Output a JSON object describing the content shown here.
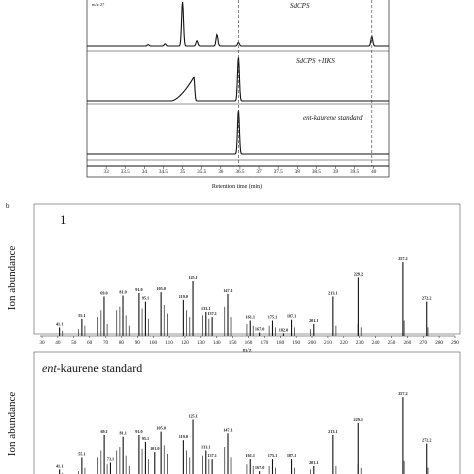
{
  "chart_data": [
    {
      "type": "line",
      "panel_label": "",
      "tracks": [
        {
          "name": "SdCPS"
        },
        {
          "name": "SdCPS +IIKS"
        },
        {
          "name": "ent-kaurene standard"
        },
        {
          "name": ""
        }
      ],
      "top_corner_text": "m/z 27",
      "xlabel": "Retention time (min)",
      "xlim": [
        32.5,
        40.4
      ],
      "xticks": [
        33,
        33.5,
        34,
        34.5,
        35,
        35.5,
        36,
        36.5,
        37,
        37.5,
        38,
        38.5,
        39,
        39.5,
        40
      ],
      "dashed_markers": [
        36.46,
        39.95
      ],
      "peaks": {
        "SdCPS": [
          [
            34.1,
            0.03
          ],
          [
            34.55,
            0.05
          ],
          [
            35.0,
            1.0
          ],
          [
            35.38,
            0.12
          ],
          [
            35.9,
            0.26
          ],
          [
            36.46,
            0.08
          ],
          [
            39.95,
            0.22
          ]
        ],
        "SdCPS +IIKS": [
          [
            35.3,
            0.55
          ],
          [
            36.46,
            1.0
          ]
        ],
        "ent-kaurene standard": [
          [
            36.46,
            1.0
          ]
        ],
        "": []
      }
    },
    {
      "type": "bar",
      "panel_label": "b",
      "title": "1",
      "xlabel": "m/z",
      "ylabel": "Ion abundance",
      "xlim": [
        30,
        290
      ],
      "ylim": [
        0,
        100
      ],
      "xticks": [
        30,
        40,
        50,
        60,
        70,
        80,
        90,
        100,
        110,
        120,
        130,
        140,
        150,
        160,
        170,
        180,
        190,
        200,
        210,
        220,
        230,
        240,
        250,
        260,
        270,
        280,
        290
      ],
      "x": [
        41.1,
        43,
        53,
        55.1,
        57,
        65,
        67,
        69.0,
        71,
        77,
        79,
        81.0,
        83,
        85,
        91.0,
        93,
        95.1,
        97,
        105.0,
        107,
        109,
        119.0,
        121,
        123,
        125.1,
        131,
        133.1,
        135,
        137.1,
        145,
        147.1,
        149,
        159,
        161.1,
        163,
        167.0,
        173,
        175.1,
        177,
        182.0,
        187.1,
        189,
        199,
        201.1,
        213.1,
        215,
        229,
        229.2,
        231,
        257.2,
        258,
        272.2,
        273
      ],
      "values": [
        10,
        6,
        8,
        20,
        12,
        22,
        30,
        46,
        14,
        30,
        34,
        47,
        24,
        12,
        50,
        32,
        40,
        20,
        51,
        36,
        26,
        42,
        30,
        22,
        64,
        24,
        28,
        20,
        22,
        34,
        49,
        22,
        14,
        18,
        12,
        4,
        12,
        18,
        10,
        3,
        19,
        10,
        8,
        14,
        46,
        12,
        14,
        68,
        10,
        86,
        18,
        40,
        10
      ],
      "annotations": [
        {
          "x": 41.1,
          "label": "41.1"
        },
        {
          "x": 55.1,
          "label": "55.1"
        },
        {
          "x": 69.0,
          "label": "69.0"
        },
        {
          "x": 81.0,
          "label": "81.0"
        },
        {
          "x": 91.0,
          "label": "91.0"
        },
        {
          "x": 95.1,
          "label": "95.1"
        },
        {
          "x": 105.0,
          "label": "105.0"
        },
        {
          "x": 119.0,
          "label": "119.0"
        },
        {
          "x": 125.1,
          "label": "125.1"
        },
        {
          "x": 133.1,
          "label": "133.1"
        },
        {
          "x": 137.1,
          "label": "137.1"
        },
        {
          "x": 147.1,
          "label": "147.1"
        },
        {
          "x": 161.1,
          "label": "161.1"
        },
        {
          "x": 167.0,
          "label": "167.0"
        },
        {
          "x": 175.1,
          "label": "175.1"
        },
        {
          "x": 182.0,
          "label": "182.0"
        },
        {
          "x": 187.1,
          "label": "187.1"
        },
        {
          "x": 201.1,
          "label": "201.1"
        },
        {
          "x": 213.1,
          "label": "213.1"
        },
        {
          "x": 229.2,
          "label": "229.2"
        },
        {
          "x": 257.2,
          "label": "257.2"
        },
        {
          "x": 272.2,
          "label": "272.2"
        }
      ]
    },
    {
      "type": "bar",
      "panel_label": "",
      "title_italic": "ent",
      "title": "-kaurene standard",
      "ylabel": "Ion abundance",
      "xlim": [
        30,
        290
      ],
      "ylim": [
        0,
        100
      ],
      "x": [
        41.1,
        43,
        53,
        55.1,
        57,
        65,
        67,
        69.1,
        71,
        73.1,
        77,
        79,
        81.1,
        83,
        85,
        91.0,
        93,
        95.1,
        97,
        101.0,
        105.0,
        107,
        109,
        119.0,
        121,
        123,
        125.1,
        131,
        133.1,
        135,
        137.1,
        145,
        147.1,
        149,
        159,
        161.1,
        163,
        167.0,
        173,
        175.1,
        177,
        187.1,
        189,
        199,
        201.1,
        213.1,
        215,
        229,
        229.1,
        231,
        257.2,
        258,
        272.2,
        273
      ],
      "values": [
        10,
        6,
        8,
        24,
        12,
        24,
        32,
        50,
        16,
        18,
        32,
        36,
        48,
        26,
        14,
        50,
        34,
        42,
        22,
        30,
        54,
        38,
        28,
        44,
        32,
        24,
        68,
        26,
        32,
        22,
        22,
        36,
        52,
        24,
        16,
        22,
        14,
        8,
        14,
        22,
        12,
        22,
        12,
        10,
        14,
        50,
        14,
        16,
        64,
        12,
        94,
        20,
        40,
        12
      ],
      "annotations": [
        {
          "x": 41.1,
          "label": "41.1"
        },
        {
          "x": 55.1,
          "label": "55.1"
        },
        {
          "x": 69.1,
          "label": "69.1"
        },
        {
          "x": 73.1,
          "label": "73.1"
        },
        {
          "x": 81.1,
          "label": "81.1"
        },
        {
          "x": 91.0,
          "label": "91.0"
        },
        {
          "x": 95.1,
          "label": "95.1"
        },
        {
          "x": 101.0,
          "label": "101.0"
        },
        {
          "x": 105.0,
          "label": "105.0"
        },
        {
          "x": 119.0,
          "label": "119.0"
        },
        {
          "x": 125.1,
          "label": "125.1"
        },
        {
          "x": 133.1,
          "label": "133.1"
        },
        {
          "x": 137.1,
          "label": "137.1"
        },
        {
          "x": 147.1,
          "label": "147.1"
        },
        {
          "x": 161.1,
          "label": "161.1"
        },
        {
          "x": 167.0,
          "label": "167.0"
        },
        {
          "x": 175.1,
          "label": "175.1"
        },
        {
          "x": 187.1,
          "label": "187.1"
        },
        {
          "x": 201.1,
          "label": "201.1"
        },
        {
          "x": 213.1,
          "label": "213.1"
        },
        {
          "x": 229.1,
          "label": "229.1"
        },
        {
          "x": 257.2,
          "label": "257.2"
        },
        {
          "x": 272.2,
          "label": "272.2"
        }
      ]
    }
  ]
}
